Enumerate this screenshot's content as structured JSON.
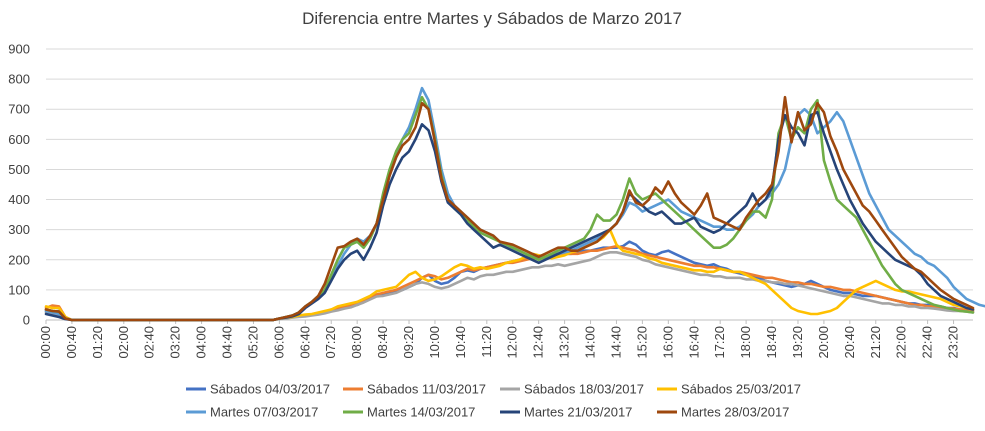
{
  "chart_data": {
    "type": "line",
    "title": "Diferencia entre Martes y Sábados de Marzo 2017",
    "xlabel": "",
    "ylabel": "",
    "ylim": [
      0,
      900
    ],
    "yticks": [
      0,
      100,
      200,
      300,
      400,
      500,
      600,
      700,
      800,
      900
    ],
    "grid": true,
    "legend_position": "bottom",
    "x_step_minutes": 10,
    "x_count": 144,
    "tick_labels": [
      "00:00",
      "00:40",
      "01:20",
      "02:00",
      "02:40",
      "03:20",
      "04:00",
      "04:40",
      "05:20",
      "06:00",
      "06:40",
      "07:20",
      "08:00",
      "08:40",
      "09:20",
      "10:00",
      "10:40",
      "11:20",
      "12:00",
      "12:40",
      "13:20",
      "14:00",
      "14:40",
      "15:20",
      "16:00",
      "16:40",
      "17:20",
      "18:00",
      "18:40",
      "19:20",
      "20:00",
      "20:40",
      "21:20",
      "22:00",
      "22:40",
      "23:20"
    ],
    "series": [
      {
        "name": "Sábados 04/03/2017",
        "color": "#4472c4",
        "values": [
          30,
          28,
          30,
          5,
          0,
          0,
          0,
          0,
          0,
          0,
          0,
          0,
          0,
          0,
          0,
          0,
          0,
          0,
          0,
          0,
          0,
          0,
          0,
          0,
          0,
          0,
          0,
          0,
          0,
          0,
          0,
          0,
          0,
          0,
          0,
          0,
          5,
          8,
          10,
          12,
          15,
          18,
          20,
          25,
          30,
          35,
          40,
          45,
          50,
          60,
          70,
          80,
          85,
          90,
          95,
          100,
          110,
          120,
          140,
          150,
          130,
          120,
          125,
          140,
          160,
          165,
          160,
          170,
          175,
          180,
          185,
          190,
          195,
          200,
          205,
          210,
          210,
          210,
          215,
          220,
          220,
          220,
          225,
          230,
          230,
          235,
          240,
          240,
          240,
          245,
          260,
          250,
          230,
          220,
          215,
          225,
          230,
          220,
          210,
          200,
          190,
          185,
          180,
          185,
          175,
          170,
          160,
          155,
          150,
          145,
          140,
          130,
          125,
          120,
          115,
          110,
          115,
          120,
          130,
          120,
          110,
          100,
          95,
          90,
          90,
          85,
          80,
          80,
          80,
          75,
          70,
          65,
          60,
          55,
          55,
          50,
          50,
          45,
          45,
          40,
          40,
          35,
          35,
          30
        ]
      },
      {
        "name": "Sábados 11/03/2017",
        "color": "#ed7d31",
        "values": [
          40,
          48,
          45,
          10,
          0,
          0,
          0,
          0,
          0,
          0,
          0,
          0,
          0,
          0,
          0,
          0,
          0,
          0,
          0,
          0,
          0,
          0,
          0,
          0,
          0,
          0,
          0,
          0,
          0,
          0,
          0,
          0,
          0,
          0,
          0,
          0,
          5,
          7,
          10,
          12,
          15,
          18,
          22,
          28,
          35,
          40,
          45,
          48,
          55,
          65,
          75,
          85,
          90,
          95,
          100,
          110,
          120,
          130,
          140,
          150,
          145,
          135,
          140,
          150,
          160,
          170,
          165,
          170,
          175,
          180,
          185,
          190,
          190,
          195,
          200,
          205,
          205,
          210,
          215,
          215,
          220,
          220,
          220,
          225,
          230,
          230,
          235,
          240,
          245,
          240,
          235,
          230,
          220,
          215,
          210,
          205,
          200,
          195,
          190,
          185,
          180,
          180,
          175,
          175,
          170,
          165,
          160,
          160,
          155,
          150,
          145,
          140,
          140,
          135,
          130,
          125,
          125,
          120,
          120,
          115,
          110,
          110,
          105,
          100,
          100,
          95,
          90,
          85,
          80,
          75,
          70,
          65,
          60,
          55,
          50,
          50,
          45,
          45,
          40,
          40,
          38,
          35,
          35,
          30
        ]
      },
      {
        "name": "Sábados 18/03/2017",
        "color": "#a5a5a5",
        "values": [
          25,
          20,
          15,
          5,
          0,
          0,
          0,
          0,
          0,
          0,
          0,
          0,
          0,
          0,
          0,
          0,
          0,
          0,
          0,
          0,
          0,
          0,
          0,
          0,
          0,
          0,
          0,
          0,
          0,
          0,
          0,
          0,
          0,
          0,
          0,
          0,
          3,
          5,
          8,
          10,
          12,
          15,
          18,
          22,
          28,
          32,
          38,
          42,
          50,
          58,
          68,
          78,
          80,
          85,
          90,
          100,
          110,
          120,
          125,
          120,
          110,
          105,
          110,
          120,
          130,
          140,
          135,
          145,
          150,
          150,
          155,
          160,
          160,
          165,
          170,
          175,
          175,
          180,
          180,
          185,
          180,
          185,
          190,
          195,
          200,
          210,
          220,
          225,
          225,
          220,
          215,
          210,
          200,
          195,
          185,
          180,
          175,
          170,
          165,
          160,
          155,
          150,
          150,
          145,
          145,
          140,
          140,
          140,
          135,
          135,
          130,
          130,
          125,
          125,
          120,
          120,
          115,
          110,
          105,
          100,
          95,
          90,
          85,
          80,
          80,
          75,
          70,
          65,
          60,
          55,
          55,
          50,
          50,
          45,
          45,
          40,
          40,
          38,
          35,
          32,
          30,
          30,
          28,
          25
        ]
      },
      {
        "name": "Sábados 25/03/2017",
        "color": "#ffc000",
        "values": [
          45,
          40,
          40,
          10,
          0,
          0,
          0,
          0,
          0,
          0,
          0,
          0,
          0,
          0,
          0,
          0,
          0,
          0,
          0,
          0,
          0,
          0,
          0,
          0,
          0,
          0,
          0,
          0,
          0,
          0,
          0,
          0,
          0,
          0,
          0,
          0,
          5,
          8,
          10,
          15,
          18,
          20,
          25,
          30,
          35,
          45,
          50,
          55,
          60,
          70,
          80,
          95,
          100,
          105,
          110,
          130,
          150,
          160,
          140,
          130,
          135,
          145,
          160,
          175,
          185,
          180,
          170,
          175,
          170,
          175,
          180,
          190,
          195,
          200,
          210,
          220,
          215,
          210,
          205,
          210,
          215,
          225,
          230,
          240,
          250,
          260,
          275,
          300,
          250,
          230,
          225,
          220,
          215,
          205,
          200,
          190,
          185,
          180,
          175,
          170,
          165,
          165,
          160,
          160,
          170,
          165,
          160,
          160,
          150,
          140,
          130,
          120,
          100,
          80,
          60,
          40,
          30,
          25,
          20,
          20,
          25,
          30,
          40,
          60,
          80,
          100,
          110,
          120,
          130,
          120,
          110,
          100,
          95,
          95,
          90,
          85,
          80,
          75,
          70,
          60,
          50,
          45,
          40,
          35
        ]
      },
      {
        "name": "Martes 07/03/2017",
        "color": "#5b9bd5",
        "values": [
          30,
          25,
          20,
          5,
          0,
          0,
          0,
          0,
          0,
          0,
          0,
          0,
          0,
          0,
          0,
          0,
          0,
          0,
          0,
          0,
          0,
          0,
          0,
          0,
          0,
          0,
          0,
          0,
          0,
          0,
          0,
          0,
          0,
          0,
          0,
          0,
          5,
          10,
          15,
          25,
          45,
          60,
          80,
          100,
          140,
          180,
          220,
          250,
          270,
          260,
          280,
          320,
          400,
          480,
          540,
          600,
          640,
          700,
          770,
          730,
          620,
          500,
          420,
          380,
          360,
          340,
          320,
          300,
          290,
          280,
          260,
          250,
          240,
          230,
          220,
          210,
          210,
          205,
          215,
          220,
          225,
          230,
          240,
          250,
          260,
          270,
          290,
          300,
          320,
          350,
          390,
          380,
          360,
          370,
          380,
          390,
          400,
          380,
          360,
          350,
          340,
          330,
          320,
          310,
          310,
          300,
          300,
          310,
          330,
          350,
          380,
          400,
          420,
          450,
          500,
          600,
          680,
          700,
          680,
          620,
          640,
          660,
          690,
          660,
          600,
          540,
          480,
          420,
          380,
          340,
          300,
          280,
          260,
          240,
          220,
          210,
          190,
          180,
          160,
          140,
          110,
          90,
          70,
          60,
          50,
          45,
          40,
          35
        ]
      },
      {
        "name": "Martes 14/03/2017",
        "color": "#70ad47",
        "values": [
          35,
          30,
          28,
          5,
          0,
          0,
          0,
          0,
          0,
          0,
          0,
          0,
          0,
          0,
          0,
          0,
          0,
          0,
          0,
          0,
          0,
          0,
          0,
          0,
          0,
          0,
          0,
          0,
          0,
          0,
          0,
          0,
          0,
          0,
          0,
          0,
          5,
          10,
          15,
          25,
          45,
          60,
          80,
          100,
          150,
          200,
          240,
          250,
          260,
          240,
          270,
          320,
          420,
          500,
          560,
          600,
          620,
          680,
          740,
          700,
          600,
          480,
          400,
          370,
          350,
          330,
          310,
          290,
          280,
          270,
          260,
          250,
          240,
          230,
          220,
          210,
          200,
          210,
          220,
          230,
          240,
          250,
          260,
          270,
          300,
          350,
          330,
          330,
          350,
          400,
          470,
          420,
          400,
          410,
          420,
          400,
          380,
          360,
          340,
          320,
          300,
          280,
          260,
          240,
          240,
          250,
          270,
          300,
          330,
          360,
          360,
          340,
          400,
          620,
          680,
          600,
          640,
          620,
          700,
          730,
          530,
          460,
          400,
          380,
          360,
          340,
          300,
          260,
          220,
          180,
          150,
          120,
          100,
          90,
          80,
          70,
          60,
          50,
          45,
          40,
          35,
          30,
          28,
          25
        ]
      },
      {
        "name": "Martes 21/03/2017",
        "color": "#264478",
        "values": [
          20,
          15,
          10,
          3,
          0,
          0,
          0,
          0,
          0,
          0,
          0,
          0,
          0,
          0,
          0,
          0,
          0,
          0,
          0,
          0,
          0,
          0,
          0,
          0,
          0,
          0,
          0,
          0,
          0,
          0,
          0,
          0,
          0,
          0,
          0,
          0,
          5,
          8,
          12,
          20,
          40,
          55,
          70,
          90,
          130,
          170,
          200,
          220,
          230,
          200,
          240,
          290,
          380,
          450,
          500,
          540,
          560,
          600,
          650,
          630,
          560,
          460,
          390,
          370,
          350,
          320,
          300,
          280,
          260,
          240,
          250,
          240,
          230,
          220,
          210,
          200,
          190,
          200,
          210,
          220,
          230,
          240,
          250,
          260,
          270,
          280,
          290,
          300,
          320,
          360,
          420,
          400,
          380,
          360,
          350,
          360,
          340,
          320,
          320,
          330,
          340,
          310,
          300,
          290,
          300,
          320,
          340,
          360,
          380,
          420,
          380,
          400,
          440,
          600,
          680,
          640,
          620,
          580,
          680,
          690,
          620,
          560,
          500,
          450,
          400,
          360,
          320,
          290,
          260,
          240,
          220,
          200,
          190,
          180,
          170,
          150,
          120,
          100,
          80,
          70,
          60,
          50,
          40,
          35
        ]
      },
      {
        "name": "Martes 28/03/2017",
        "color": "#9e480e",
        "values": [
          35,
          30,
          28,
          5,
          0,
          0,
          0,
          0,
          0,
          0,
          0,
          0,
          0,
          0,
          0,
          0,
          0,
          0,
          0,
          0,
          0,
          0,
          0,
          0,
          0,
          0,
          0,
          0,
          0,
          0,
          0,
          0,
          0,
          0,
          0,
          0,
          5,
          10,
          15,
          25,
          45,
          60,
          80,
          120,
          180,
          240,
          245,
          260,
          270,
          250,
          280,
          320,
          400,
          480,
          540,
          580,
          600,
          640,
          720,
          700,
          590,
          470,
          400,
          380,
          360,
          340,
          320,
          300,
          290,
          280,
          260,
          255,
          250,
          240,
          230,
          220,
          210,
          220,
          230,
          240,
          240,
          230,
          230,
          240,
          250,
          260,
          280,
          300,
          320,
          360,
          430,
          390,
          380,
          400,
          440,
          420,
          460,
          420,
          390,
          370,
          350,
          380,
          420,
          340,
          330,
          320,
          310,
          300,
          340,
          370,
          400,
          420,
          450,
          560,
          740,
          590,
          690,
          630,
          650,
          720,
          690,
          610,
          560,
          500,
          460,
          420,
          380,
          360,
          330,
          300,
          270,
          240,
          210,
          190,
          170,
          160,
          140,
          120,
          100,
          85,
          70,
          60,
          50,
          40
        ]
      }
    ]
  }
}
